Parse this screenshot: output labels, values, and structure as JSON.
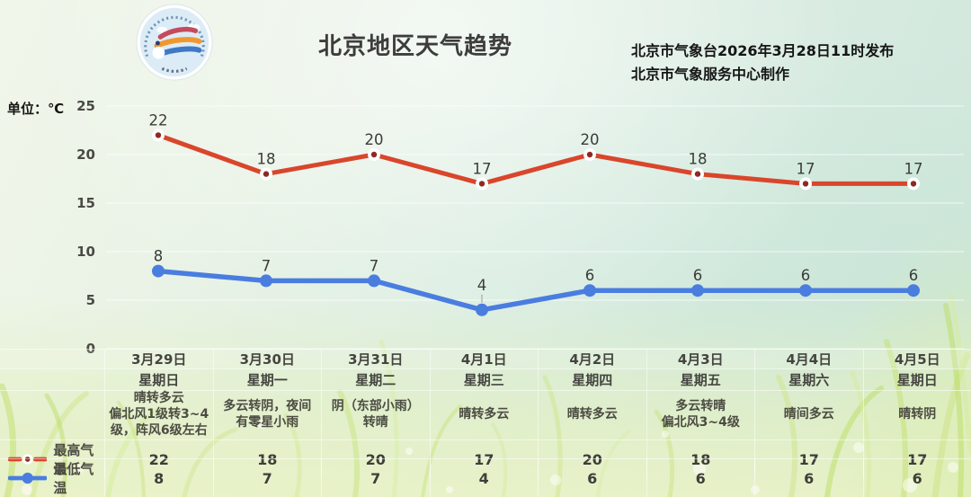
{
  "header": {
    "title": "北京地区天气趋势",
    "issued_by": "北京市气象台2026年3月28日11时发布",
    "produced_by": "北京市气象服务中心制作"
  },
  "chart_data": {
    "type": "line",
    "title": "北京地区天气趋势",
    "unit_label": "单位：℃",
    "ylim": [
      0,
      25
    ],
    "yticks": [
      0,
      5,
      10,
      15,
      20,
      25
    ],
    "grid": true,
    "legend_position": "bottom-left",
    "categories": [
      "3月29日",
      "3月30日",
      "3月31日",
      "4月1日",
      "4月2日",
      "4月3日",
      "4月4日",
      "4月5日"
    ],
    "weekdays": [
      "星期日",
      "星期一",
      "星期二",
      "星期三",
      "星期四",
      "星期五",
      "星期六",
      "星期日"
    ],
    "weather": [
      [
        "晴转多云",
        "偏北风1级转3~4",
        "级，阵风6级左右"
      ],
      [
        "多云转阴，夜间",
        "有零星小雨"
      ],
      [
        "阴（东部小雨）",
        "转晴"
      ],
      [
        "晴转多云"
      ],
      [
        "晴转多云"
      ],
      [
        "多云转晴",
        "偏北风3~4级"
      ],
      [
        "晴间多云"
      ],
      [
        "晴转阴"
      ]
    ],
    "series": [
      {
        "name": "最高气温",
        "color": "#d9462b",
        "marker_center": "#8e2a21",
        "values": [
          22,
          18,
          20,
          17,
          20,
          18,
          17,
          17
        ]
      },
      {
        "name": "最低气温",
        "color": "#4a7de0",
        "values": [
          8,
          7,
          7,
          4,
          6,
          6,
          6,
          6
        ]
      }
    ]
  }
}
